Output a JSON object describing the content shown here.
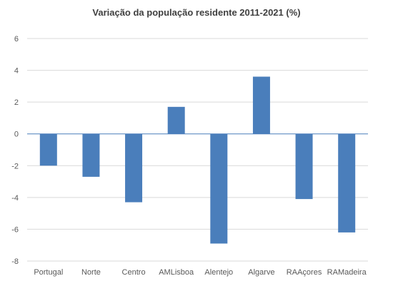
{
  "chart_data": {
    "type": "bar",
    "title": "Variação da população residente 2011-2021 (%)",
    "xlabel": "",
    "ylabel": "",
    "categories": [
      "Portugal",
      "Norte",
      "Centro",
      "AMLisboa",
      "Alentejo",
      "Algarve",
      "RAAçores",
      "RAMadeira"
    ],
    "values": [
      -2.0,
      -2.7,
      -4.3,
      1.7,
      -6.9,
      3.6,
      -4.1,
      -6.2
    ],
    "ylim": [
      -8,
      6
    ],
    "yticks": [
      6,
      4,
      2,
      0,
      -2,
      -4,
      -6,
      -8
    ],
    "grid": true,
    "legend": "none",
    "colors": {
      "bar": "#4a7ebb",
      "grid": "#d9d9d9",
      "zero_line": "#4a7ebb"
    }
  }
}
